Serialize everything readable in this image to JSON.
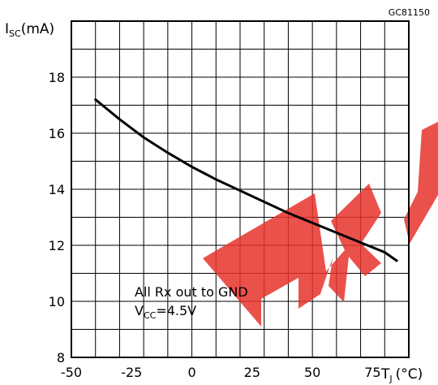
{
  "chart_data": {
    "type": "line",
    "figure_code": "GC81150",
    "ylabel": {
      "main": "I",
      "sub": "SC",
      "unit": "(mA)"
    },
    "xlabel": {
      "main": "T",
      "sub": "J",
      "unit": "(°C)"
    },
    "xlim": [
      -50,
      90
    ],
    "ylim": [
      8,
      20
    ],
    "x_ticks": [
      -50,
      -25,
      0,
      25,
      50,
      75
    ],
    "y_ticks": [
      8,
      10,
      12,
      14,
      16,
      18
    ],
    "x_minor_step": 10,
    "y_minor_step": 1,
    "grid": true,
    "annotation": {
      "line1": "All Rx out to GND",
      "line2_main": "V",
      "line2_sub": "CC",
      "line2_rest": "=4.5V"
    },
    "series": [
      {
        "x": [
          -40,
          -30,
          -20,
          -10,
          0,
          10,
          20,
          30,
          40,
          50,
          60,
          70,
          80,
          85
        ],
        "y": [
          17.2,
          16.5,
          15.85,
          15.3,
          14.8,
          14.35,
          13.95,
          13.55,
          13.15,
          12.8,
          12.45,
          12.1,
          11.75,
          11.45
        ]
      }
    ],
    "line_color": "#000000",
    "watermark_color": "#e8322b"
  }
}
